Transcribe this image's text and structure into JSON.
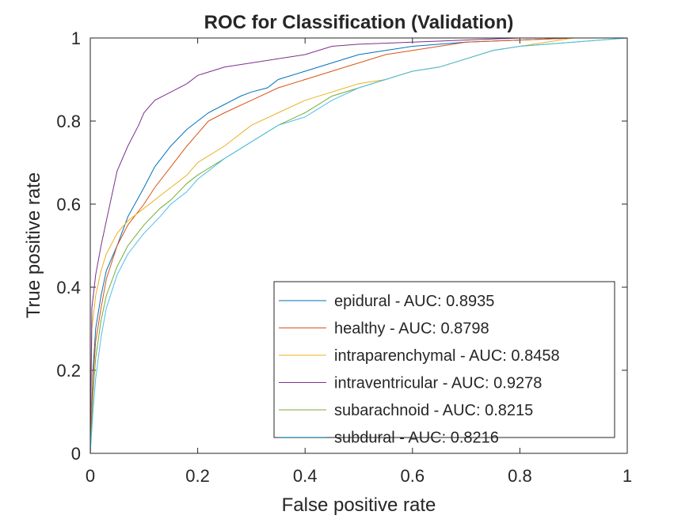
{
  "chart_data": {
    "type": "line",
    "title": "ROC for Classification (Validation)",
    "xlabel": "False positive rate",
    "ylabel": "True positive rate",
    "xlim": [
      0,
      1
    ],
    "ylim": [
      0,
      1
    ],
    "xticks": [
      "0",
      "0.2",
      "0.4",
      "0.6",
      "0.8",
      "1"
    ],
    "yticks": [
      "0",
      "0.2",
      "0.4",
      "0.6",
      "0.8",
      "1"
    ],
    "grid": false,
    "legend_position": "bottom-right",
    "series": [
      {
        "name": "epidural - AUC: 0.8935",
        "color": "#0072BD",
        "x": [
          0,
          0.005,
          0.01,
          0.02,
          0.03,
          0.05,
          0.07,
          0.1,
          0.12,
          0.15,
          0.18,
          0.2,
          0.22,
          0.25,
          0.28,
          0.3,
          0.33,
          0.35,
          0.4,
          0.45,
          0.5,
          0.55,
          0.6,
          0.65,
          0.7,
          0.8,
          0.9,
          1
        ],
        "y": [
          0,
          0.2,
          0.3,
          0.38,
          0.44,
          0.5,
          0.57,
          0.64,
          0.69,
          0.74,
          0.78,
          0.8,
          0.82,
          0.84,
          0.86,
          0.87,
          0.88,
          0.9,
          0.92,
          0.94,
          0.96,
          0.97,
          0.98,
          0.985,
          0.99,
          0.995,
          1,
          1
        ]
      },
      {
        "name": "healthy - AUC: 0.8798",
        "color": "#D95319",
        "x": [
          0,
          0.005,
          0.01,
          0.02,
          0.03,
          0.05,
          0.07,
          0.1,
          0.12,
          0.15,
          0.18,
          0.2,
          0.22,
          0.25,
          0.3,
          0.35,
          0.4,
          0.45,
          0.5,
          0.55,
          0.6,
          0.65,
          0.7,
          0.8,
          0.9,
          1
        ],
        "y": [
          0,
          0.18,
          0.27,
          0.35,
          0.42,
          0.5,
          0.55,
          0.6,
          0.64,
          0.69,
          0.74,
          0.77,
          0.8,
          0.82,
          0.85,
          0.88,
          0.9,
          0.92,
          0.94,
          0.96,
          0.97,
          0.98,
          0.99,
          0.995,
          1,
          1
        ]
      },
      {
        "name": "intraparenchymal - AUC: 0.8458",
        "color": "#EDB120",
        "x": [
          0,
          0.003,
          0.01,
          0.02,
          0.03,
          0.05,
          0.07,
          0.1,
          0.13,
          0.15,
          0.18,
          0.2,
          0.25,
          0.3,
          0.35,
          0.4,
          0.45,
          0.5,
          0.55,
          0.6,
          0.65,
          0.7,
          0.75,
          0.8,
          0.85,
          0.9,
          1
        ],
        "y": [
          0,
          0.3,
          0.38,
          0.44,
          0.48,
          0.53,
          0.56,
          0.59,
          0.62,
          0.64,
          0.67,
          0.7,
          0.74,
          0.79,
          0.82,
          0.85,
          0.87,
          0.89,
          0.9,
          0.92,
          0.93,
          0.95,
          0.97,
          0.98,
          0.99,
          1,
          1
        ]
      },
      {
        "name": "intraventricular - AUC: 0.9278",
        "color": "#7E2F8E",
        "x": [
          0,
          0.003,
          0.01,
          0.02,
          0.03,
          0.04,
          0.05,
          0.07,
          0.09,
          0.1,
          0.12,
          0.15,
          0.18,
          0.2,
          0.25,
          0.3,
          0.35,
          0.4,
          0.45,
          0.5,
          0.6,
          0.7,
          0.8,
          1
        ],
        "y": [
          0,
          0.35,
          0.43,
          0.5,
          0.56,
          0.62,
          0.68,
          0.74,
          0.79,
          0.82,
          0.85,
          0.87,
          0.89,
          0.91,
          0.93,
          0.94,
          0.95,
          0.96,
          0.98,
          0.985,
          0.99,
          0.995,
          1,
          1
        ]
      },
      {
        "name": "subarachnoid - AUC: 0.8215",
        "color": "#77AC30",
        "x": [
          0,
          0.005,
          0.01,
          0.02,
          0.03,
          0.05,
          0.07,
          0.1,
          0.13,
          0.15,
          0.18,
          0.2,
          0.25,
          0.3,
          0.35,
          0.4,
          0.45,
          0.5,
          0.55,
          0.6,
          0.65,
          0.7,
          0.75,
          0.8,
          0.9,
          1
        ],
        "y": [
          0,
          0.14,
          0.23,
          0.32,
          0.38,
          0.45,
          0.5,
          0.55,
          0.59,
          0.61,
          0.65,
          0.67,
          0.71,
          0.75,
          0.79,
          0.82,
          0.86,
          0.88,
          0.9,
          0.92,
          0.93,
          0.95,
          0.97,
          0.98,
          0.99,
          1
        ]
      },
      {
        "name": "subdural - AUC: 0.8216",
        "color": "#4DBEEE",
        "x": [
          0,
          0.005,
          0.01,
          0.02,
          0.03,
          0.05,
          0.07,
          0.1,
          0.13,
          0.15,
          0.18,
          0.2,
          0.25,
          0.3,
          0.35,
          0.4,
          0.45,
          0.5,
          0.55,
          0.6,
          0.65,
          0.7,
          0.75,
          0.8,
          0.9,
          1
        ],
        "y": [
          0,
          0.1,
          0.18,
          0.28,
          0.35,
          0.43,
          0.48,
          0.53,
          0.57,
          0.6,
          0.63,
          0.66,
          0.71,
          0.75,
          0.79,
          0.81,
          0.85,
          0.88,
          0.9,
          0.92,
          0.93,
          0.95,
          0.97,
          0.98,
          0.99,
          1
        ]
      }
    ]
  }
}
